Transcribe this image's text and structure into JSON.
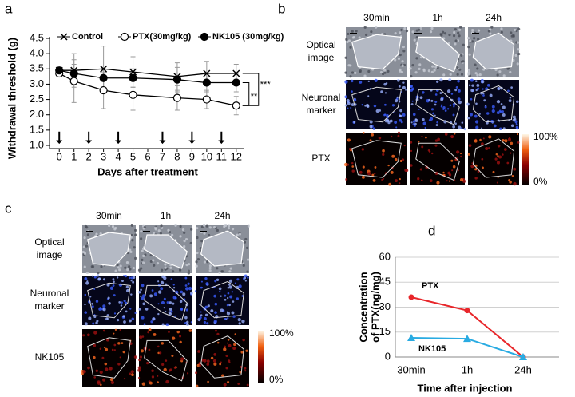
{
  "panel_labels": [
    "a",
    "b",
    "c",
    "d"
  ],
  "chart_data": [
    {
      "type": "line",
      "ylabel": "Withdrawal threshold (g)",
      "xlabel": "Days after treatment",
      "x": [
        0,
        1,
        3,
        5,
        8,
        10,
        12
      ],
      "xlim": [
        -0.5,
        12.5
      ],
      "xticks": [
        0,
        1,
        2,
        3,
        4,
        5,
        6,
        7,
        8,
        9,
        10,
        11,
        12
      ],
      "ylim": [
        1,
        4.5
      ],
      "yticks": [
        {
          "value": 1,
          "label": "1.0"
        },
        1.5,
        {
          "value": 2,
          "label": "2.0"
        },
        2.5,
        {
          "value": 3,
          "label": "3.0"
        },
        3.5,
        {
          "value": 4,
          "label": "4.0"
        },
        4.5
      ],
      "series": [
        {
          "name": "Control",
          "color": "#000000",
          "marker": "x",
          "values": [
            3.45,
            3.45,
            3.5,
            3.4,
            3.25,
            3.35,
            3.35
          ],
          "errors": [
            0.1,
            0.55,
            0.75,
            0.5,
            0.45,
            0.4,
            0.3
          ]
        },
        {
          "name": "PTX(30mg/kg)",
          "color": "#000000",
          "marker": "open",
          "values": [
            3.35,
            3.1,
            2.8,
            2.65,
            2.55,
            2.5,
            2.3
          ],
          "errors": [
            0.1,
            0.7,
            0.6,
            0.5,
            0.4,
            0.3,
            0.3
          ]
        },
        {
          "name": "NK105 (30mg/kg)",
          "color": "#000000",
          "marker": "filled",
          "values": [
            3.45,
            3.35,
            3.2,
            3.2,
            3.15,
            3.05,
            3.05
          ],
          "errors": [
            0.1,
            0.3,
            0.3,
            0.3,
            0.4,
            0.3,
            0.3
          ]
        }
      ],
      "arrow_x": [
        0,
        2,
        4,
        7,
        9,
        11
      ],
      "annotations": [
        "**",
        "***"
      ]
    },
    {
      "type": "line",
      "ylabel": [
        "Concentration",
        "of PTX(ng/mg)"
      ],
      "xlabel": "Time after injection",
      "categories": [
        "30min",
        "1h",
        "24h"
      ],
      "ylim": [
        0,
        60
      ],
      "yticks": [
        0,
        15,
        30,
        45,
        60
      ],
      "grid": true,
      "series": [
        {
          "name": "PTX",
          "color": "#e8262a",
          "marker": "circle",
          "values": [
            36,
            28,
            0
          ]
        },
        {
          "name": "NK105",
          "color": "#29abe2",
          "marker": "triangle",
          "values": [
            11.5,
            11,
            0
          ]
        }
      ]
    }
  ],
  "panel_b": {
    "columns": [
      "30min",
      "1h",
      "24h"
    ],
    "rows": [
      [
        "Optical",
        "image"
      ],
      [
        "Neuronal",
        "marker"
      ],
      [
        "PTX"
      ]
    ],
    "colorbar": [
      "100%",
      "0%"
    ]
  },
  "panel_c": {
    "columns": [
      "30min",
      "1h",
      "24h"
    ],
    "rows": [
      [
        "Optical",
        "image"
      ],
      [
        "Neuronal",
        "marker"
      ],
      [
        "NK105"
      ]
    ],
    "colorbar": [
      "100%",
      "0%"
    ]
  }
}
